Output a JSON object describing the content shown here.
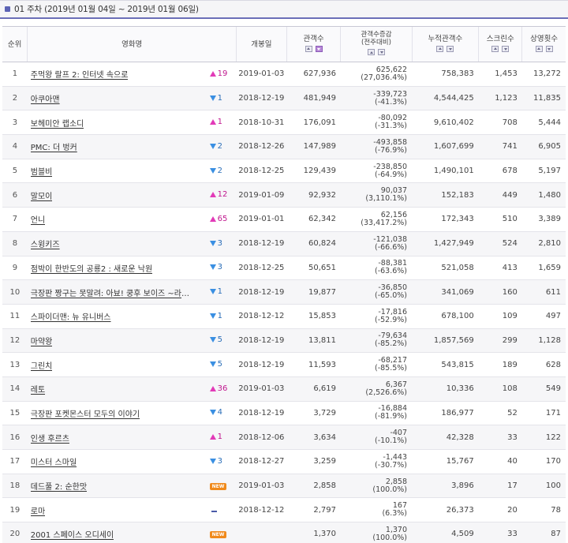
{
  "header": {
    "title": "01 주차 (2019년 01월 04일 ~ 2019년 01월 06일)"
  },
  "columns": {
    "rank": "순위",
    "movie": "영화명",
    "release": "개봉일",
    "audience": "관객수",
    "delta": "관객수증감",
    "delta_sub": "(전주대비)",
    "cumulative": "누적관객수",
    "screens": "스크린수",
    "shows": "상영횟수"
  },
  "rows": [
    {
      "rank": "1",
      "title": "주먹왕 랄프 2: 인터넷 속으로",
      "change_dir": "up",
      "change": "19",
      "release": "2019-01-03",
      "audience": "627,936",
      "delta": "625,622",
      "delta_pct": "(27,036.4%)",
      "cumulative": "758,383",
      "screens": "1,453",
      "shows": "13,272"
    },
    {
      "rank": "2",
      "title": "아쿠아맨",
      "change_dir": "down",
      "change": "1",
      "release": "2018-12-19",
      "audience": "481,949",
      "delta": "-339,723",
      "delta_pct": "(-41.3%)",
      "cumulative": "4,544,425",
      "screens": "1,123",
      "shows": "11,835"
    },
    {
      "rank": "3",
      "title": "보헤미안 랩소디",
      "change_dir": "up",
      "change": "1",
      "release": "2018-10-31",
      "audience": "176,091",
      "delta": "-80,092",
      "delta_pct": "(-31.3%)",
      "cumulative": "9,610,402",
      "screens": "708",
      "shows": "5,444"
    },
    {
      "rank": "4",
      "title": "PMC: 더 벙커",
      "change_dir": "down",
      "change": "2",
      "release": "2018-12-26",
      "audience": "147,989",
      "delta": "-493,858",
      "delta_pct": "(-76.9%)",
      "cumulative": "1,607,699",
      "screens": "741",
      "shows": "6,905"
    },
    {
      "rank": "5",
      "title": "범블비",
      "change_dir": "down",
      "change": "2",
      "release": "2018-12-25",
      "audience": "129,439",
      "delta": "-238,850",
      "delta_pct": "(-64.9%)",
      "cumulative": "1,490,101",
      "screens": "678",
      "shows": "5,197"
    },
    {
      "rank": "6",
      "title": "말모이",
      "change_dir": "up",
      "change": "12",
      "release": "2019-01-09",
      "audience": "92,932",
      "delta": "90,037",
      "delta_pct": "(3,110.1%)",
      "cumulative": "152,183",
      "screens": "449",
      "shows": "1,480"
    },
    {
      "rank": "7",
      "title": "언니",
      "change_dir": "up",
      "change": "65",
      "release": "2019-01-01",
      "audience": "62,342",
      "delta": "62,156",
      "delta_pct": "(33,417.2%)",
      "cumulative": "172,343",
      "screens": "510",
      "shows": "3,389"
    },
    {
      "rank": "8",
      "title": "스윙키즈",
      "change_dir": "down",
      "change": "3",
      "release": "2018-12-19",
      "audience": "60,824",
      "delta": "-121,038",
      "delta_pct": "(-66.6%)",
      "cumulative": "1,427,949",
      "screens": "524",
      "shows": "2,810"
    },
    {
      "rank": "9",
      "title": "점박이 한반도의 공룡2 : 새로운 낙원",
      "change_dir": "down",
      "change": "3",
      "release": "2018-12-25",
      "audience": "50,651",
      "delta": "-88,381",
      "delta_pct": "(-63.6%)",
      "cumulative": "521,058",
      "screens": "413",
      "shows": "1,659"
    },
    {
      "rank": "10",
      "title": "극장판 짱구는 못말려: 아뵤! 쿵후 보이즈 ~라면 …",
      "change_dir": "down",
      "change": "1",
      "release": "2018-12-19",
      "audience": "19,877",
      "delta": "-36,850",
      "delta_pct": "(-65.0%)",
      "cumulative": "341,069",
      "screens": "160",
      "shows": "611"
    },
    {
      "rank": "11",
      "title": "스파이더맨: 뉴 유니버스",
      "change_dir": "down",
      "change": "1",
      "release": "2018-12-12",
      "audience": "15,853",
      "delta": "-17,816",
      "delta_pct": "(-52.9%)",
      "cumulative": "678,100",
      "screens": "109",
      "shows": "497"
    },
    {
      "rank": "12",
      "title": "마약왕",
      "change_dir": "down",
      "change": "5",
      "release": "2018-12-19",
      "audience": "13,811",
      "delta": "-79,634",
      "delta_pct": "(-85.2%)",
      "cumulative": "1,857,569",
      "screens": "299",
      "shows": "1,128"
    },
    {
      "rank": "13",
      "title": "그린치",
      "change_dir": "down",
      "change": "5",
      "release": "2018-12-19",
      "audience": "11,593",
      "delta": "-68,217",
      "delta_pct": "(-85.5%)",
      "cumulative": "543,815",
      "screens": "189",
      "shows": "628"
    },
    {
      "rank": "14",
      "title": "레토",
      "change_dir": "up",
      "change": "36",
      "release": "2019-01-03",
      "audience": "6,619",
      "delta": "6,367",
      "delta_pct": "(2,526.6%)",
      "cumulative": "10,336",
      "screens": "108",
      "shows": "549"
    },
    {
      "rank": "15",
      "title": "극장판 포켓몬스터 모두의 이야기",
      "change_dir": "down",
      "change": "4",
      "release": "2018-12-19",
      "audience": "3,729",
      "delta": "-16,884",
      "delta_pct": "(-81.9%)",
      "cumulative": "186,977",
      "screens": "52",
      "shows": "171"
    },
    {
      "rank": "16",
      "title": "인생 후르츠",
      "change_dir": "up",
      "change": "1",
      "release": "2018-12-06",
      "audience": "3,634",
      "delta": "-407",
      "delta_pct": "(-10.1%)",
      "cumulative": "42,328",
      "screens": "33",
      "shows": "122"
    },
    {
      "rank": "17",
      "title": "미스터 스마일",
      "change_dir": "down",
      "change": "3",
      "release": "2018-12-27",
      "audience": "3,259",
      "delta": "-1,443",
      "delta_pct": "(-30.7%)",
      "cumulative": "15,767",
      "screens": "40",
      "shows": "170"
    },
    {
      "rank": "18",
      "title": "데드풀 2: 순한맛",
      "change_dir": "new",
      "change": "NEW",
      "release": "2019-01-03",
      "audience": "2,858",
      "delta": "2,858",
      "delta_pct": "(100.0%)",
      "cumulative": "3,896",
      "screens": "17",
      "shows": "100"
    },
    {
      "rank": "19",
      "title": "로마",
      "change_dir": "same",
      "change": "",
      "release": "2018-12-12",
      "audience": "2,797",
      "delta": "167",
      "delta_pct": "(6.3%)",
      "cumulative": "26,373",
      "screens": "20",
      "shows": "78"
    },
    {
      "rank": "20",
      "title": "2001 스페이스 오디세이",
      "change_dir": "new",
      "change": "NEW",
      "release": "",
      "audience": "1,370",
      "delta": "1,370",
      "delta_pct": "(100.0%)",
      "cumulative": "4,509",
      "screens": "33",
      "shows": "87"
    }
  ]
}
